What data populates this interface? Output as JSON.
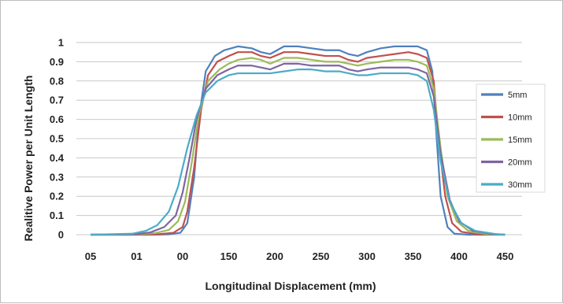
{
  "chart_data": {
    "type": "line",
    "title": "",
    "xlabel": "Longitudinal Displacement (mm)",
    "ylabel": "Realitive Power per Unit Length",
    "x_tick_labels": [
      "05",
      "01",
      "00",
      "150",
      "200",
      "250",
      "300",
      "350",
      "400",
      "450"
    ],
    "y_tick_labels": [
      "0",
      "0.1",
      "0.2",
      "0.3",
      "0.4",
      "0.5",
      "0.6",
      "0.7",
      "0.8",
      "0.9",
      "1"
    ],
    "ylim": [
      0,
      1
    ],
    "x_tick_index_range": [
      0,
      9
    ],
    "grid": "horizontal",
    "legend_position": "right",
    "x_units_note": "x values expressed on tick-index scale (0 = '05', 9 = '450'), tick spacing 50 mm",
    "series": [
      {
        "name": "5mm",
        "color": "#4F81BD",
        "x": [
          0.0,
          1.0,
          1.4,
          1.7,
          1.95,
          2.1,
          2.25,
          2.35,
          2.5,
          2.7,
          2.9,
          3.2,
          3.5,
          3.7,
          3.9,
          4.2,
          4.5,
          4.8,
          5.1,
          5.4,
          5.6,
          5.8,
          6.0,
          6.3,
          6.6,
          6.9,
          7.1,
          7.3,
          7.42,
          7.5,
          7.6,
          7.75,
          7.9,
          8.2,
          9.0
        ],
        "y": [
          0.0,
          0.0,
          0.0,
          0.002,
          0.01,
          0.06,
          0.3,
          0.6,
          0.85,
          0.93,
          0.96,
          0.98,
          0.97,
          0.95,
          0.94,
          0.98,
          0.98,
          0.97,
          0.96,
          0.96,
          0.94,
          0.93,
          0.95,
          0.97,
          0.98,
          0.98,
          0.98,
          0.96,
          0.85,
          0.55,
          0.2,
          0.04,
          0.005,
          0.0,
          0.0
        ]
      },
      {
        "name": "10mm",
        "color": "#C0504D",
        "x": [
          0.0,
          1.0,
          1.5,
          1.8,
          2.0,
          2.1,
          2.25,
          2.4,
          2.55,
          2.75,
          3.0,
          3.2,
          3.5,
          3.7,
          3.9,
          4.2,
          4.5,
          4.8,
          5.1,
          5.4,
          5.6,
          5.8,
          6.0,
          6.3,
          6.6,
          6.9,
          7.1,
          7.3,
          7.45,
          7.55,
          7.7,
          7.85,
          8.05,
          8.4,
          9.0
        ],
        "y": [
          0.0,
          0.0,
          0.003,
          0.01,
          0.04,
          0.12,
          0.35,
          0.65,
          0.83,
          0.9,
          0.93,
          0.95,
          0.95,
          0.93,
          0.92,
          0.95,
          0.95,
          0.94,
          0.93,
          0.93,
          0.91,
          0.9,
          0.92,
          0.93,
          0.94,
          0.95,
          0.94,
          0.92,
          0.8,
          0.5,
          0.2,
          0.06,
          0.015,
          0.002,
          0.0
        ]
      },
      {
        "name": "15mm",
        "color": "#9BBB59",
        "x": [
          0.0,
          1.0,
          1.4,
          1.7,
          1.9,
          2.05,
          2.2,
          2.35,
          2.55,
          2.8,
          3.0,
          3.2,
          3.5,
          3.7,
          3.9,
          4.2,
          4.5,
          4.8,
          5.1,
          5.4,
          5.6,
          5.8,
          6.0,
          6.3,
          6.6,
          6.9,
          7.1,
          7.3,
          7.45,
          7.6,
          7.75,
          7.95,
          8.2,
          8.6,
          9.0
        ],
        "y": [
          0.0,
          0.002,
          0.008,
          0.025,
          0.07,
          0.17,
          0.38,
          0.62,
          0.8,
          0.86,
          0.89,
          0.91,
          0.92,
          0.91,
          0.89,
          0.92,
          0.92,
          0.91,
          0.9,
          0.9,
          0.89,
          0.88,
          0.89,
          0.9,
          0.91,
          0.91,
          0.9,
          0.88,
          0.76,
          0.45,
          0.2,
          0.07,
          0.02,
          0.003,
          0.0
        ]
      },
      {
        "name": "20mm",
        "color": "#8064A2",
        "x": [
          0.0,
          1.0,
          1.3,
          1.6,
          1.85,
          2.0,
          2.15,
          2.3,
          2.5,
          2.75,
          3.0,
          3.2,
          3.5,
          3.7,
          3.9,
          4.2,
          4.5,
          4.8,
          5.1,
          5.4,
          5.6,
          5.8,
          6.0,
          6.3,
          6.6,
          6.9,
          7.1,
          7.3,
          7.45,
          7.6,
          7.8,
          8.0,
          8.3,
          8.7,
          9.0
        ],
        "y": [
          0.0,
          0.003,
          0.012,
          0.04,
          0.1,
          0.22,
          0.4,
          0.6,
          0.76,
          0.83,
          0.86,
          0.88,
          0.88,
          0.87,
          0.86,
          0.89,
          0.89,
          0.88,
          0.88,
          0.88,
          0.86,
          0.85,
          0.86,
          0.87,
          0.87,
          0.87,
          0.86,
          0.84,
          0.72,
          0.42,
          0.18,
          0.07,
          0.02,
          0.004,
          0.0
        ]
      },
      {
        "name": "30mm",
        "color": "#4BACC6",
        "x": [
          0.0,
          0.9,
          1.2,
          1.45,
          1.7,
          1.9,
          2.1,
          2.3,
          2.5,
          2.75,
          3.0,
          3.2,
          3.5,
          3.7,
          3.9,
          4.2,
          4.5,
          4.8,
          5.1,
          5.4,
          5.6,
          5.8,
          6.0,
          6.3,
          6.6,
          6.9,
          7.1,
          7.3,
          7.45,
          7.6,
          7.8,
          8.05,
          8.35,
          8.8,
          9.0
        ],
        "y": [
          0.0,
          0.005,
          0.02,
          0.05,
          0.12,
          0.25,
          0.45,
          0.62,
          0.74,
          0.8,
          0.83,
          0.84,
          0.84,
          0.84,
          0.84,
          0.85,
          0.86,
          0.86,
          0.85,
          0.85,
          0.84,
          0.83,
          0.83,
          0.84,
          0.84,
          0.84,
          0.83,
          0.8,
          0.65,
          0.38,
          0.17,
          0.06,
          0.02,
          0.003,
          0.0
        ]
      }
    ]
  }
}
